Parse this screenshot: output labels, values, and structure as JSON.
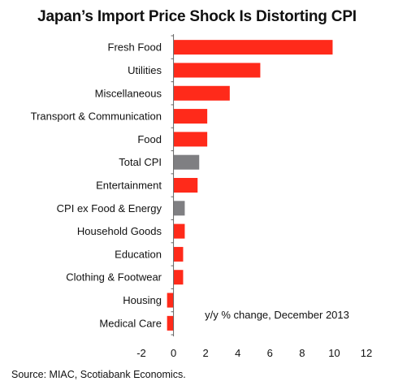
{
  "title": "Japan’s Import Price Shock Is Distorting CPI",
  "source": "Source: MIAC, Scotiabank Economics.",
  "colors": {
    "primary": "#ff2a1a",
    "total": "#7f7f82",
    "axis": "#666666"
  },
  "chart_data": {
    "type": "bar",
    "orientation": "horizontal",
    "title": "Japan’s Import Price Shock Is Distorting CPI",
    "annotation": "y/y % change, December 2013",
    "categories": [
      "Fresh Food",
      "Utilities",
      "Miscellaneous",
      "Transport & Communication",
      "Food",
      "Total CPI",
      "Entertainment",
      "CPI ex Food & Energy",
      "Household Goods",
      "Education",
      "Clothing & Footwear",
      "Housing",
      "Medical Care"
    ],
    "values": [
      9.9,
      5.4,
      3.5,
      2.1,
      2.1,
      1.6,
      1.5,
      0.7,
      0.7,
      0.6,
      0.6,
      -0.4,
      -0.4
    ],
    "bar_colors": [
      "primary",
      "primary",
      "primary",
      "primary",
      "primary",
      "total",
      "primary",
      "total",
      "primary",
      "primary",
      "primary",
      "primary",
      "primary"
    ],
    "xlim": [
      -2,
      12
    ],
    "xticks": [
      "-2",
      "0",
      "2",
      "4",
      "6",
      "8",
      "10",
      "12"
    ],
    "xtick_values": [
      -2,
      0,
      2,
      4,
      6,
      8,
      10,
      12
    ],
    "xlabel": "",
    "ylabel": "",
    "grid": false,
    "legend": "none"
  }
}
